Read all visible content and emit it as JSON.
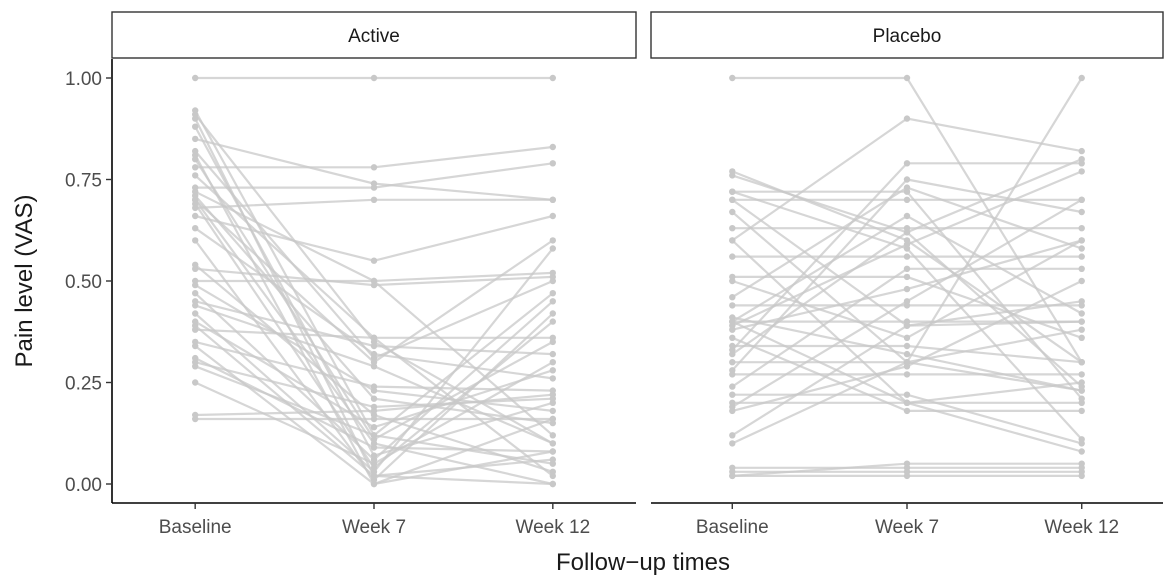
{
  "chart_data": {
    "type": "line",
    "facets": [
      "Active",
      "Placebo"
    ],
    "categories": [
      "Baseline",
      "Week 7",
      "Week 12"
    ],
    "xlabel": "Follow−up times",
    "ylabel": "Pain level (VAS)",
    "ylim": [
      0,
      1
    ],
    "yticks": [
      "0.00",
      "0.25",
      "0.50",
      "0.75",
      "1.00"
    ],
    "grid": false,
    "colors": {
      "line": "#c8c8c8",
      "point": "#c8c8c8",
      "axis": "#000000"
    },
    "panels": [
      {
        "name": "Active",
        "subjects": [
          [
            1.0,
            1.0,
            1.0
          ],
          [
            0.92,
            0.12,
            0.05
          ],
          [
            0.91,
            0.35,
            0.1
          ],
          [
            0.9,
            0.02,
            0.0
          ],
          [
            0.88,
            0.07,
            0.2
          ],
          [
            0.85,
            0.74,
            0.7
          ],
          [
            0.82,
            0.31,
            0.5
          ],
          [
            0.81,
            0.0,
            0.08
          ],
          [
            0.8,
            0.11,
            0.35
          ],
          [
            0.78,
            0.78,
            0.83
          ],
          [
            0.73,
            0.73,
            0.79
          ],
          [
            0.72,
            0.5,
            0.52
          ],
          [
            0.71,
            0.21,
            0.15
          ],
          [
            0.7,
            0.1,
            0.0
          ],
          [
            0.7,
            0.3,
            0.6
          ],
          [
            0.69,
            0.04,
            0.4
          ],
          [
            0.68,
            0.7,
            0.7
          ],
          [
            0.66,
            0.55,
            0.66
          ],
          [
            0.63,
            0.32,
            0.26
          ],
          [
            0.54,
            0.17,
            0.03
          ],
          [
            0.53,
            0.49,
            0.51
          ],
          [
            0.5,
            0.5,
            0.12
          ],
          [
            0.49,
            0.23,
            0.18
          ],
          [
            0.47,
            0.06,
            0.45
          ],
          [
            0.45,
            0.34,
            0.32
          ],
          [
            0.42,
            0.03,
            0.58
          ],
          [
            0.4,
            0.14,
            0.28
          ],
          [
            0.39,
            0.02,
            0.06
          ],
          [
            0.38,
            0.36,
            0.36
          ],
          [
            0.35,
            0.24,
            0.23
          ],
          [
            0.34,
            0.0,
            0.16
          ],
          [
            0.31,
            0.09,
            0.08
          ],
          [
            0.3,
            0.19,
            0.21
          ],
          [
            0.29,
            0.12,
            0.47
          ],
          [
            0.25,
            0.05,
            0.3
          ],
          [
            0.17,
            0.18,
            0.22
          ],
          [
            0.16,
            0.16,
            0.16
          ],
          [
            0.44,
            0.29,
            0.1
          ],
          [
            0.6,
            0.01,
            0.42
          ],
          [
            0.76,
            0.36,
            0.02
          ]
        ]
      },
      {
        "name": "Placebo",
        "subjects": [
          [
            1.0,
            1.0,
            0.3
          ],
          [
            0.77,
            0.6,
            0.3
          ],
          [
            0.76,
            0.62,
            0.8
          ],
          [
            0.72,
            0.72,
            0.21
          ],
          [
            0.7,
            0.39,
            0.4
          ],
          [
            0.7,
            0.7,
            0.7
          ],
          [
            0.67,
            0.3,
            0.23
          ],
          [
            0.63,
            0.63,
            0.63
          ],
          [
            0.6,
            0.9,
            0.82
          ],
          [
            0.6,
            0.2,
            0.25
          ],
          [
            0.56,
            0.56,
            0.56
          ],
          [
            0.51,
            0.51,
            0.36
          ],
          [
            0.5,
            0.36,
            0.6
          ],
          [
            0.46,
            0.73,
            0.58
          ],
          [
            0.44,
            0.44,
            0.44
          ],
          [
            0.41,
            0.32,
            0.23
          ],
          [
            0.4,
            0.66,
            0.42
          ],
          [
            0.4,
            0.4,
            0.4
          ],
          [
            0.39,
            0.59,
            0.77
          ],
          [
            0.38,
            0.48,
            0.6
          ],
          [
            0.36,
            0.18,
            0.18
          ],
          [
            0.34,
            0.34,
            0.3
          ],
          [
            0.33,
            0.79,
            0.79
          ],
          [
            0.32,
            0.62,
            0.24
          ],
          [
            0.3,
            0.3,
            0.38
          ],
          [
            0.28,
            0.75,
            0.67
          ],
          [
            0.27,
            0.27,
            0.27
          ],
          [
            0.24,
            0.53,
            0.53
          ],
          [
            0.22,
            0.22,
            0.1
          ],
          [
            0.2,
            0.2,
            0.2
          ],
          [
            0.19,
            0.45,
            0.7
          ],
          [
            0.18,
            0.29,
            0.5
          ],
          [
            0.12,
            0.39,
            0.45
          ],
          [
            0.1,
            0.3,
            1.0
          ],
          [
            0.04,
            0.04,
            0.04
          ],
          [
            0.03,
            0.03,
            0.03
          ],
          [
            0.02,
            0.02,
            0.02
          ],
          [
            0.02,
            0.05,
            0.05
          ],
          [
            0.4,
            0.2,
            0.08
          ],
          [
            0.72,
            0.58,
            0.11
          ]
        ]
      }
    ]
  }
}
